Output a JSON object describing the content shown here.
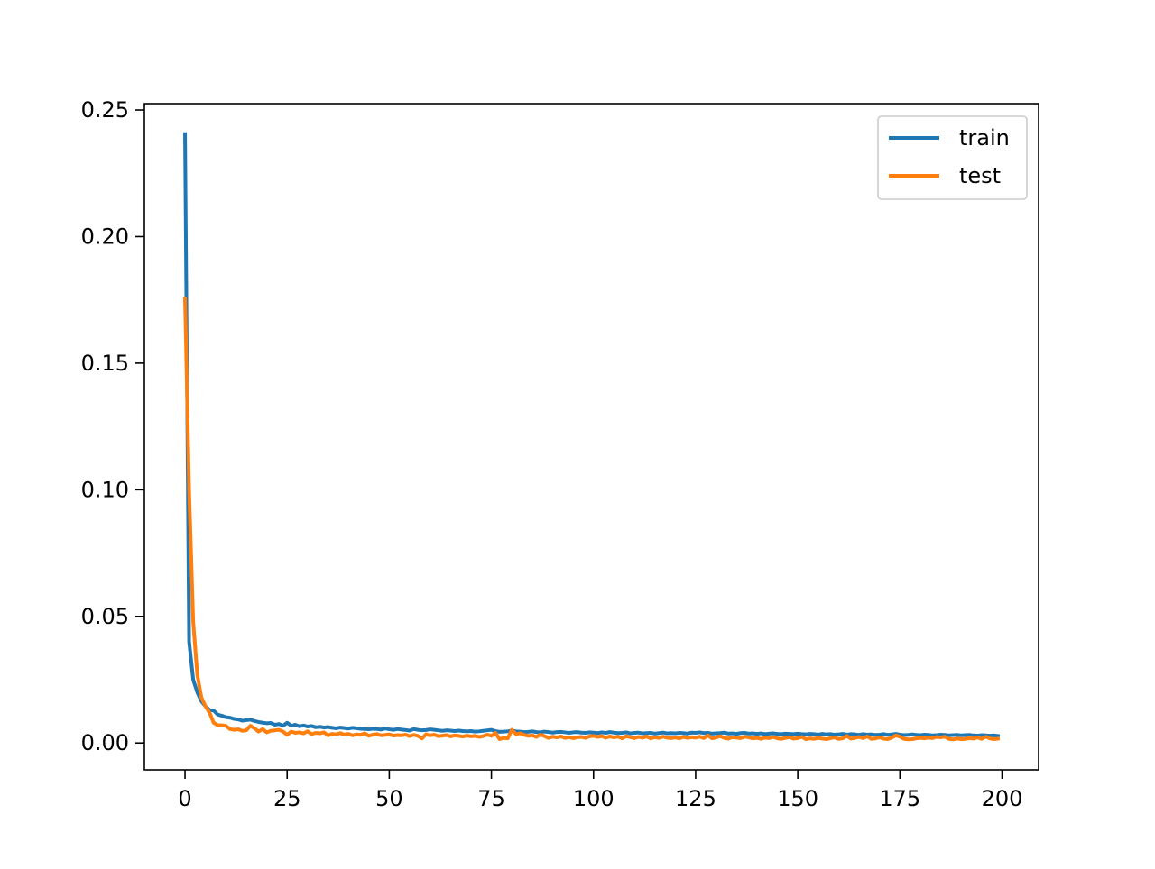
{
  "chart_data": {
    "type": "line",
    "x": [
      0,
      1,
      2,
      3,
      4,
      5,
      6,
      7,
      8,
      9,
      10,
      11,
      12,
      13,
      14,
      15,
      16,
      17,
      18,
      19,
      20,
      21,
      22,
      23,
      24,
      25,
      26,
      27,
      28,
      29,
      30,
      31,
      32,
      33,
      34,
      35,
      36,
      37,
      38,
      39,
      40,
      41,
      42,
      43,
      44,
      45,
      46,
      47,
      48,
      49,
      50,
      51,
      52,
      53,
      54,
      55,
      56,
      57,
      58,
      59,
      60,
      61,
      62,
      63,
      64,
      65,
      66,
      67,
      68,
      69,
      70,
      71,
      72,
      73,
      74,
      75,
      76,
      77,
      78,
      79,
      80,
      81,
      82,
      83,
      84,
      85,
      86,
      87,
      88,
      89,
      90,
      91,
      92,
      93,
      94,
      95,
      96,
      97,
      98,
      99,
      100,
      101,
      102,
      103,
      104,
      105,
      106,
      107,
      108,
      109,
      110,
      111,
      112,
      113,
      114,
      115,
      116,
      117,
      118,
      119,
      120,
      121,
      122,
      123,
      124,
      125,
      126,
      127,
      128,
      129,
      130,
      131,
      132,
      133,
      134,
      135,
      136,
      137,
      138,
      139,
      140,
      141,
      142,
      143,
      144,
      145,
      146,
      147,
      148,
      149,
      150,
      151,
      152,
      153,
      154,
      155,
      156,
      157,
      158,
      159,
      160,
      161,
      162,
      163,
      164,
      165,
      166,
      167,
      168,
      169,
      170,
      171,
      172,
      173,
      174,
      175,
      176,
      177,
      178,
      179,
      180,
      181,
      182,
      183,
      184,
      185,
      186,
      187,
      188,
      189,
      190,
      191,
      192,
      193,
      194,
      195,
      196,
      197,
      198,
      199
    ],
    "series": [
      {
        "name": "train",
        "color": "#1f77b4",
        "values": [
          0.2405,
          0.04,
          0.025,
          0.02,
          0.0165,
          0.0145,
          0.013,
          0.0128,
          0.0112,
          0.0108,
          0.0102,
          0.01,
          0.0095,
          0.0093,
          0.0088,
          0.009,
          0.0092,
          0.0087,
          0.0083,
          0.008,
          0.0078,
          0.0079,
          0.0072,
          0.0075,
          0.0068,
          0.008,
          0.0068,
          0.0072,
          0.0066,
          0.0069,
          0.0065,
          0.0067,
          0.0062,
          0.0064,
          0.0061,
          0.0063,
          0.006,
          0.0058,
          0.0061,
          0.0059,
          0.0057,
          0.006,
          0.0058,
          0.0056,
          0.0055,
          0.0054,
          0.0056,
          0.0055,
          0.0053,
          0.0057,
          0.0054,
          0.0052,
          0.0055,
          0.0053,
          0.0051,
          0.0049,
          0.0055,
          0.0052,
          0.005,
          0.0051,
          0.0054,
          0.0052,
          0.005,
          0.0048,
          0.005,
          0.0049,
          0.0047,
          0.0049,
          0.0047,
          0.0046,
          0.0047,
          0.0045,
          0.0046,
          0.0048,
          0.005,
          0.0052,
          0.0047,
          0.0044,
          0.0045,
          0.0046,
          0.0049,
          0.0046,
          0.0045,
          0.0043,
          0.0044,
          0.0046,
          0.0043,
          0.0042,
          0.0045,
          0.0043,
          0.0041,
          0.0043,
          0.0044,
          0.0042,
          0.004,
          0.0042,
          0.0043,
          0.0041,
          0.004,
          0.0042,
          0.0041,
          0.0039,
          0.0042,
          0.004,
          0.0043,
          0.0041,
          0.0039,
          0.004,
          0.0042,
          0.0038,
          0.004,
          0.0041,
          0.0038,
          0.0039,
          0.004,
          0.0037,
          0.0039,
          0.0041,
          0.0038,
          0.0039,
          0.0038,
          0.004,
          0.0039,
          0.0037,
          0.0041,
          0.004,
          0.0042,
          0.0039,
          0.004,
          0.0037,
          0.0038,
          0.0039,
          0.0041,
          0.0037,
          0.0038,
          0.0036,
          0.0039,
          0.004,
          0.0037,
          0.0038,
          0.0036,
          0.0038,
          0.0035,
          0.0037,
          0.0038,
          0.0036,
          0.0035,
          0.0037,
          0.0036,
          0.0035,
          0.0037,
          0.0035,
          0.0034,
          0.0036,
          0.0035,
          0.0033,
          0.0036,
          0.0034,
          0.0035,
          0.0033,
          0.0034,
          0.0036,
          0.0033,
          0.0035,
          0.0034,
          0.0032,
          0.0035,
          0.0033,
          0.0034,
          0.0032,
          0.0033,
          0.0035,
          0.0032,
          0.0034,
          0.0036,
          0.0033,
          0.0031,
          0.0032,
          0.0034,
          0.0032,
          0.0031,
          0.0033,
          0.0032,
          0.003,
          0.0031,
          0.0033,
          0.0032,
          0.003,
          0.0031,
          0.0032,
          0.003,
          0.0031,
          0.0032,
          0.003,
          0.0029,
          0.0031,
          0.003,
          0.0029,
          0.003,
          0.0028
        ]
      },
      {
        "name": "test",
        "color": "#ff7f0e",
        "values": [
          0.1755,
          0.1,
          0.048,
          0.027,
          0.018,
          0.0145,
          0.012,
          0.008,
          0.007,
          0.007,
          0.0068,
          0.0055,
          0.0052,
          0.0054,
          0.0048,
          0.005,
          0.0068,
          0.0058,
          0.0045,
          0.0055,
          0.0042,
          0.0048,
          0.005,
          0.0052,
          0.0045,
          0.0032,
          0.0045,
          0.004,
          0.0042,
          0.0038,
          0.0046,
          0.0035,
          0.004,
          0.0038,
          0.0042,
          0.003,
          0.0036,
          0.0034,
          0.0039,
          0.0033,
          0.0036,
          0.003,
          0.0034,
          0.0032,
          0.0038,
          0.0028,
          0.0033,
          0.0035,
          0.003,
          0.0032,
          0.0034,
          0.0029,
          0.0031,
          0.003,
          0.0033,
          0.0027,
          0.0032,
          0.0028,
          0.0018,
          0.0034,
          0.003,
          0.0033,
          0.0027,
          0.0029,
          0.0031,
          0.0026,
          0.003,
          0.0028,
          0.0025,
          0.0029,
          0.0026,
          0.0028,
          0.0024,
          0.0027,
          0.0033,
          0.0028,
          0.004,
          0.0015,
          0.002,
          0.0018,
          0.0052,
          0.0035,
          0.0038,
          0.0032,
          0.0028,
          0.003,
          0.0024,
          0.0033,
          0.0027,
          0.002,
          0.0025,
          0.0022,
          0.0026,
          0.002,
          0.0023,
          0.0019,
          0.0022,
          0.0024,
          0.002,
          0.0026,
          0.0028,
          0.0024,
          0.0027,
          0.0021,
          0.0026,
          0.0022,
          0.0025,
          0.0018,
          0.0027,
          0.0023,
          0.0019,
          0.0024,
          0.0021,
          0.0026,
          0.0018,
          0.0023,
          0.002,
          0.0025,
          0.0021,
          0.0019,
          0.0022,
          0.0018,
          0.0024,
          0.002,
          0.0023,
          0.0021,
          0.0025,
          0.0019,
          0.003,
          0.0018,
          0.0022,
          0.0027,
          0.002,
          0.0017,
          0.0023,
          0.0021,
          0.0019,
          0.0025,
          0.0022,
          0.0018,
          0.002,
          0.0016,
          0.0021,
          0.0019,
          0.0024,
          0.0018,
          0.0016,
          0.002,
          0.0023,
          0.0017,
          0.0019,
          0.0024,
          0.0015,
          0.0018,
          0.0016,
          0.002,
          0.0017,
          0.0015,
          0.0019,
          0.0022,
          0.0016,
          0.0018,
          0.0028,
          0.0017,
          0.002,
          0.0024,
          0.0019,
          0.0026,
          0.0016,
          0.0018,
          0.0022,
          0.0017,
          0.0015,
          0.0021,
          0.003,
          0.0025,
          0.0016,
          0.0014,
          0.0015,
          0.0018,
          0.002,
          0.0018,
          0.0021,
          0.0019,
          0.0024,
          0.0022,
          0.0025,
          0.0016,
          0.0014,
          0.0017,
          0.0015,
          0.0016,
          0.0019,
          0.0017,
          0.0022,
          0.0016,
          0.0025,
          0.0018,
          0.0015,
          0.0017
        ]
      }
    ],
    "xlim": [
      -9.95,
      208.95
    ],
    "ylim": [
      -0.0106,
      0.2525
    ],
    "xticks": [
      0,
      25,
      50,
      75,
      100,
      125,
      150,
      175,
      200
    ],
    "yticks": [
      {
        "value": 0,
        "label": "0.00"
      },
      0.05,
      {
        "value": 0.1,
        "label": "0.10"
      },
      0.15,
      {
        "value": 0.2,
        "label": "0.20"
      },
      0.25
    ],
    "legend": "upper right"
  }
}
